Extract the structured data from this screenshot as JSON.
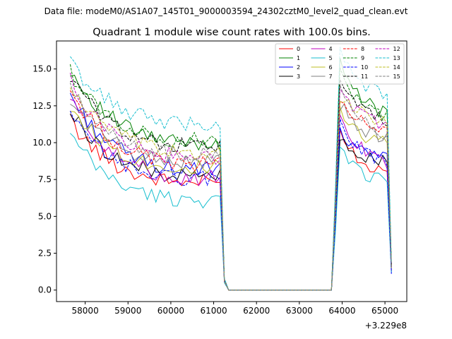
{
  "chart_data": {
    "type": "line",
    "suptitle": "Data file: modeM0/AS1A07_145T01_9000003594_24302cztM0_level2_quad_clean.evt",
    "title": "Quadrant 1 module wise count rates with 100.0s bins.",
    "xlabel": "",
    "ylabel": "",
    "x_offset_label": "+3.229e8",
    "xlim": [
      57330,
      65510
    ],
    "ylim": [
      -0.78,
      16.9
    ],
    "x_ticks": [
      58000,
      59000,
      60000,
      61000,
      62000,
      63000,
      64000,
      65000
    ],
    "x_tick_labels": [
      "58000",
      "59000",
      "60000",
      "61000",
      "62000",
      "63000",
      "64000",
      "65000"
    ],
    "y_ticks": [
      0,
      2.5,
      5,
      7.5,
      10,
      12.5,
      15
    ],
    "y_tick_labels": [
      "0.0",
      "2.5",
      "5.0",
      "7.5",
      "10.0",
      "12.5",
      "15.0"
    ],
    "grid": false,
    "legend_position": "top-right",
    "legend_columns": 4,
    "segments": {
      "orbit1": {
        "x_start": 57650,
        "x_end": 61150,
        "step": 100
      },
      "gap": {
        "x": [
          61250,
          61350,
          61450,
          61550,
          61650,
          61750,
          61850,
          61950,
          62050,
          62150,
          62250,
          62350,
          62450,
          62550,
          62650,
          62750,
          62850,
          62950,
          63050,
          63150,
          63250,
          63350,
          63450,
          63550,
          63650,
          63750
        ],
        "value": 0.0
      },
      "orbit2": {
        "x_start": 63850,
        "x_end": 65150,
        "step": 100
      }
    },
    "series": [
      {
        "name": "0",
        "color": "#ff0000",
        "dash": "solid",
        "orbit1_start": 11.5,
        "orbit1_end": 7.2,
        "gap_edge": 0.6,
        "orbit2_peak": 10.6,
        "orbit2_end": 7.7,
        "final": 1.5
      },
      {
        "name": "1",
        "color": "#008000",
        "dash": "solid",
        "orbit1_start": 15.0,
        "orbit1_end": 9.8,
        "gap_edge": 0.6,
        "orbit2_peak": 15.4,
        "orbit2_end": 11.4,
        "final": 1.7
      },
      {
        "name": "2",
        "color": "#0000ff",
        "dash": "solid",
        "orbit1_start": 13.3,
        "orbit1_end": 8.0,
        "gap_edge": 0.6,
        "orbit2_peak": 10.9,
        "orbit2_end": 8.6,
        "final": 1.1
      },
      {
        "name": "3",
        "color": "#000000",
        "dash": "solid",
        "orbit1_start": 12.1,
        "orbit1_end": 7.6,
        "gap_edge": 0.6,
        "orbit2_peak": 10.6,
        "orbit2_end": 8.3,
        "final": 1.3
      },
      {
        "name": "4",
        "color": "#bf00bf",
        "dash": "solid",
        "orbit1_start": 13.0,
        "orbit1_end": 7.4,
        "gap_edge": 0.6,
        "orbit2_peak": 11.9,
        "orbit2_end": 8.0,
        "final": 1.4
      },
      {
        "name": "5",
        "color": "#17becf",
        "dash": "solid",
        "orbit1_start": 10.5,
        "orbit1_end": 6.0,
        "gap_edge": 0.5,
        "orbit2_peak": 9.4,
        "orbit2_end": 7.0,
        "final": 1.2
      },
      {
        "name": "6",
        "color": "#bcbd22",
        "dash": "solid",
        "orbit1_start": 12.5,
        "orbit1_end": 8.2,
        "gap_edge": 0.6,
        "orbit2_peak": 12.2,
        "orbit2_end": 9.6,
        "final": 1.5
      },
      {
        "name": "7",
        "color": "#7f7f7f",
        "dash": "solid",
        "orbit1_start": 12.8,
        "orbit1_end": 8.6,
        "gap_edge": 0.6,
        "orbit2_peak": 12.6,
        "orbit2_end": 10.0,
        "final": 1.6
      },
      {
        "name": "8",
        "color": "#ff0000",
        "dash": "dashed",
        "orbit1_start": 13.5,
        "orbit1_end": 8.4,
        "gap_edge": 0.6,
        "orbit2_peak": 12.9,
        "orbit2_end": 10.4,
        "final": 1.6
      },
      {
        "name": "9",
        "color": "#008000",
        "dash": "dashed",
        "orbit1_start": 14.8,
        "orbit1_end": 10.0,
        "gap_edge": 0.7,
        "orbit2_peak": 14.6,
        "orbit2_end": 11.4,
        "final": 1.7
      },
      {
        "name": "10",
        "color": "#0000ff",
        "dash": "dashed",
        "orbit1_start": 11.8,
        "orbit1_end": 7.5,
        "gap_edge": 0.6,
        "orbit2_peak": 11.2,
        "orbit2_end": 8.4,
        "final": 1.2
      },
      {
        "name": "11",
        "color": "#000000",
        "dash": "dashed",
        "orbit1_start": 14.5,
        "orbit1_end": 9.6,
        "gap_edge": 0.7,
        "orbit2_peak": 14.3,
        "orbit2_end": 11.0,
        "final": 1.7
      },
      {
        "name": "12",
        "color": "#bf00bf",
        "dash": "dashed",
        "orbit1_start": 14.2,
        "orbit1_end": 8.8,
        "gap_edge": 0.6,
        "orbit2_peak": 13.8,
        "orbit2_end": 10.8,
        "final": 1.6
      },
      {
        "name": "13",
        "color": "#17becf",
        "dash": "dashed",
        "orbit1_start": 15.5,
        "orbit1_end": 11.2,
        "gap_edge": 0.8,
        "orbit2_peak": 16.5,
        "orbit2_end": 12.6,
        "final": 1.9
      },
      {
        "name": "14",
        "color": "#bcbd22",
        "dash": "dashed",
        "orbit1_start": 13.8,
        "orbit1_end": 9.2,
        "gap_edge": 0.6,
        "orbit2_peak": 13.2,
        "orbit2_end": 11.2,
        "final": 1.6
      },
      {
        "name": "15",
        "color": "#7f7f7f",
        "dash": "dashed",
        "orbit1_start": 13.6,
        "orbit1_end": 9.0,
        "gap_edge": 0.6,
        "orbit2_peak": 13.5,
        "orbit2_end": 10.2,
        "final": 1.6
      }
    ]
  }
}
